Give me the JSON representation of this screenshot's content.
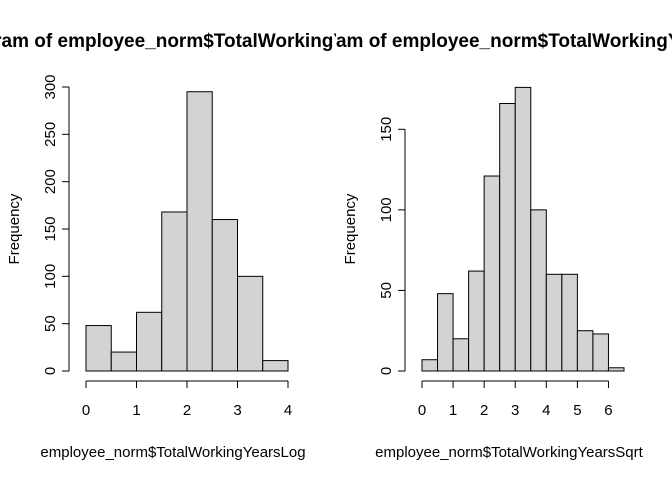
{
  "chart_data": [
    {
      "type": "bar",
      "title": "Histogram of employee_norm$TotalWorkingYearsLog",
      "xlabel": "employee_norm$TotalWorkingYearsLog",
      "ylabel": "Frequency",
      "xlim": [
        0,
        4
      ],
      "ylim": [
        0,
        300
      ],
      "x_ticks": [
        "0",
        "1",
        "2",
        "3",
        "4"
      ],
      "y_ticks": [
        "0",
        "50",
        "100",
        "150",
        "200",
        "250",
        "300"
      ],
      "bin_edges": [
        0,
        0.5,
        1,
        1.5,
        2,
        2.5,
        3,
        3.5,
        4
      ],
      "values": [
        48,
        20,
        62,
        168,
        295,
        160,
        100,
        11
      ],
      "colors": {
        "bar_fill": "#d3d3d3",
        "bar_stroke": "#000000"
      }
    },
    {
      "type": "bar",
      "title": "Histogram of employee_norm$TotalWorkingYearsSqrt",
      "xlabel": "employee_norm$TotalWorkingYearsSqrt",
      "ylabel": "Frequency",
      "xlim": [
        0,
        6.5
      ],
      "ylim": [
        0,
        175
      ],
      "x_ticks": [
        "0",
        "1",
        "2",
        "3",
        "4",
        "5",
        "6"
      ],
      "y_ticks": [
        "0",
        "50",
        "100",
        "150"
      ],
      "bin_edges": [
        0,
        0.5,
        1,
        1.5,
        2,
        2.5,
        3,
        3.5,
        4,
        4.5,
        5,
        5.5,
        6,
        6.5
      ],
      "values": [
        7,
        48,
        20,
        62,
        121,
        166,
        176,
        100,
        60,
        60,
        25,
        23,
        2
      ],
      "colors": {
        "bar_fill": "#d3d3d3",
        "bar_stroke": "#000000"
      }
    }
  ]
}
